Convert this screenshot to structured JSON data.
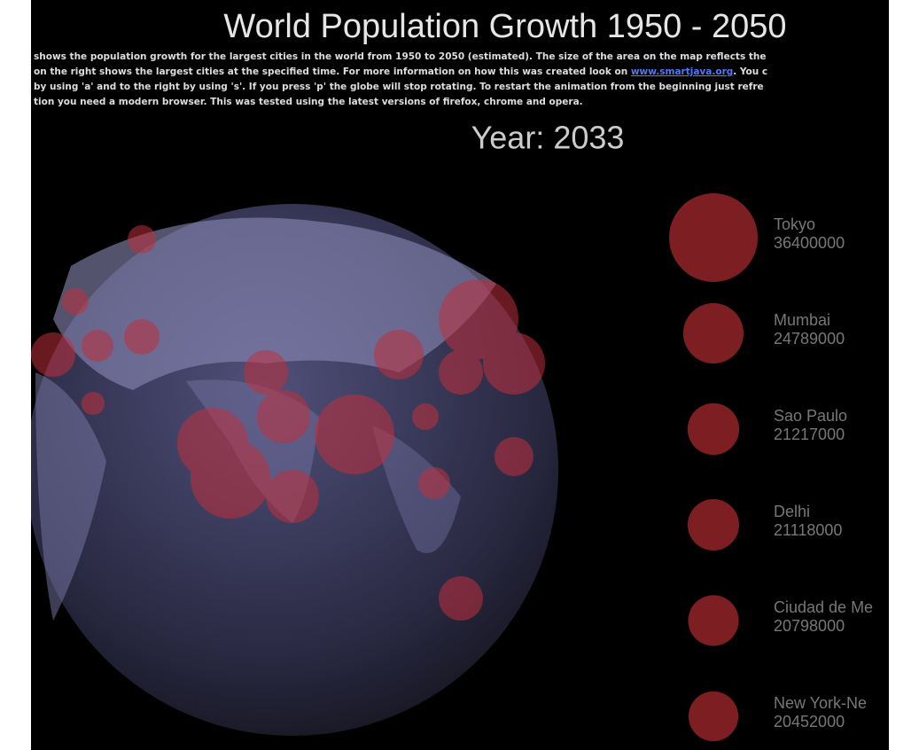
{
  "header": {
    "title": "World Population Growth 1950 - 2050"
  },
  "description": {
    "line1": "shows the population growth for the largest cities in the world from 1950 to 2050 (estimated). The size of the area on the map reflects the",
    "line2_start": "on the right shows the largest cities at the specified time. For more information on how this was created look on ",
    "link": "www.smartjava.org",
    "line2_end": ". You c",
    "line3": "by using 'a' and to the right by using 's'. If you press 'p' the globe will stop rotating. To restart the animation from the beginning just refre",
    "line4": "tion you need a modern browser. This was tested using the latest versions of firefox, chrome and opera."
  },
  "year_label": "Year: 2033",
  "cities": [
    {
      "name": "Tokyo",
      "population": 36400000
    },
    {
      "name": "Mumbai",
      "population": 24789000
    },
    {
      "name": "Sao Paulo",
      "population": 21217000
    },
    {
      "name": "Delhi",
      "population": 21118000
    },
    {
      "name": "Ciudad de Me",
      "population": 20798000
    },
    {
      "name": "New York-Ne",
      "population": 20452000
    }
  ]
}
